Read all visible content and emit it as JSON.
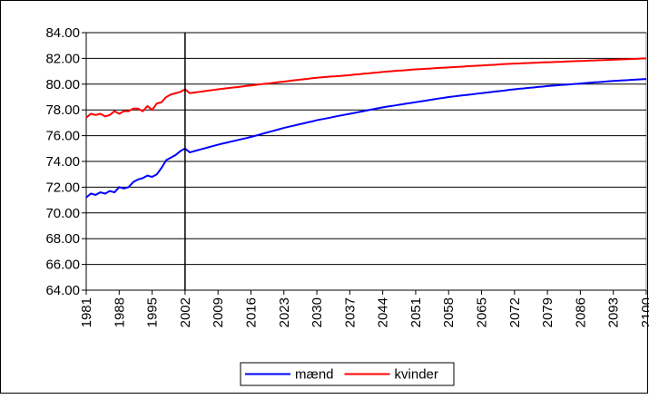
{
  "chart_data": {
    "type": "line",
    "x": [
      1981,
      1982,
      1983,
      1984,
      1985,
      1986,
      1987,
      1988,
      1989,
      1990,
      1991,
      1992,
      1993,
      1994,
      1995,
      1996,
      1997,
      1998,
      1999,
      2000,
      2001,
      2002,
      2003,
      2004,
      2005,
      2006,
      2007,
      2008,
      2009,
      2010,
      2011,
      2012,
      2013,
      2014,
      2015,
      2016,
      2017,
      2018,
      2019,
      2020,
      2021,
      2022,
      2023,
      2024,
      2025,
      2026,
      2027,
      2028,
      2029,
      2030,
      2031,
      2032,
      2033,
      2034,
      2035,
      2036,
      2037,
      2038,
      2039,
      2040,
      2041,
      2042,
      2043,
      2044,
      2045,
      2046,
      2047,
      2048,
      2049,
      2050,
      2051,
      2052,
      2053,
      2054,
      2055,
      2056,
      2057,
      2058,
      2059,
      2060,
      2061,
      2062,
      2063,
      2064,
      2065,
      2066,
      2067,
      2068,
      2069,
      2070,
      2071,
      2072,
      2073,
      2074,
      2075,
      2076,
      2077,
      2078,
      2079,
      2080,
      2081,
      2082,
      2083,
      2084,
      2085,
      2086,
      2087,
      2088,
      2089,
      2090,
      2091,
      2092,
      2093,
      2094,
      2095,
      2096,
      2097,
      2098,
      2099,
      2100
    ],
    "series": [
      {
        "name": "mænd",
        "color": "#0000ff",
        "values": [
          71.2,
          71.5,
          71.4,
          71.6,
          71.5,
          71.7,
          71.6,
          72.0,
          71.9,
          72.0,
          72.4,
          72.6,
          72.7,
          72.9,
          72.8,
          73.0,
          73.5,
          74.1,
          74.3,
          74.5,
          74.8,
          75.0,
          74.7,
          74.8,
          74.9,
          75.0,
          75.1,
          75.2,
          75.3,
          75.39,
          75.47,
          75.56,
          75.64,
          75.73,
          75.81,
          75.9,
          76.0,
          76.1,
          76.2,
          76.3,
          76.4,
          76.5,
          76.6,
          76.69,
          76.77,
          76.86,
          76.94,
          77.03,
          77.11,
          77.2,
          77.27,
          77.34,
          77.41,
          77.49,
          77.56,
          77.63,
          77.7,
          77.77,
          77.84,
          77.91,
          77.99,
          78.06,
          78.13,
          78.2,
          78.26,
          78.31,
          78.37,
          78.43,
          78.49,
          78.54,
          78.6,
          78.66,
          78.71,
          78.77,
          78.83,
          78.89,
          78.94,
          79.0,
          79.04,
          79.09,
          79.13,
          79.17,
          79.21,
          79.26,
          79.3,
          79.34,
          79.39,
          79.43,
          79.47,
          79.51,
          79.56,
          79.6,
          79.64,
          79.67,
          79.71,
          79.74,
          79.78,
          79.81,
          79.85,
          79.88,
          79.91,
          79.94,
          79.96,
          79.99,
          80.02,
          80.05,
          80.08,
          80.11,
          80.14,
          80.16,
          80.19,
          80.22,
          80.25,
          80.27,
          80.29,
          80.31,
          80.34,
          80.36,
          80.38,
          80.4
        ]
      },
      {
        "name": "kvinder",
        "color": "#ff0000",
        "values": [
          77.4,
          77.7,
          77.6,
          77.7,
          77.5,
          77.6,
          77.9,
          77.7,
          77.9,
          77.9,
          78.1,
          78.1,
          77.9,
          78.3,
          78.0,
          78.5,
          78.6,
          79.0,
          79.2,
          79.3,
          79.4,
          79.6,
          79.3,
          79.35,
          79.4,
          79.45,
          79.5,
          79.55,
          79.6,
          79.64,
          79.69,
          79.73,
          79.77,
          79.81,
          79.86,
          79.9,
          79.94,
          79.99,
          80.03,
          80.07,
          80.11,
          80.16,
          80.2,
          80.24,
          80.29,
          80.33,
          80.37,
          80.41,
          80.46,
          80.5,
          80.53,
          80.56,
          80.59,
          80.61,
          80.64,
          80.67,
          80.7,
          80.74,
          80.77,
          80.81,
          80.84,
          80.88,
          80.91,
          80.95,
          80.98,
          81.01,
          81.04,
          81.06,
          81.09,
          81.12,
          81.15,
          81.17,
          81.19,
          81.21,
          81.24,
          81.26,
          81.28,
          81.3,
          81.32,
          81.34,
          81.36,
          81.39,
          81.41,
          81.43,
          81.45,
          81.47,
          81.49,
          81.51,
          81.54,
          81.56,
          81.58,
          81.6,
          81.61,
          81.63,
          81.64,
          81.66,
          81.67,
          81.69,
          81.7,
          81.71,
          81.73,
          81.74,
          81.76,
          81.77,
          81.79,
          81.8,
          81.81,
          81.83,
          81.84,
          81.86,
          81.87,
          81.89,
          81.9,
          81.91,
          81.93,
          81.94,
          81.96,
          81.97,
          81.99,
          82.0
        ]
      }
    ],
    "xlim": [
      1981,
      2100
    ],
    "xticks": [
      1981,
      1988,
      1995,
      2002,
      2009,
      2016,
      2023,
      2030,
      2037,
      2044,
      2051,
      2058,
      2065,
      2072,
      2079,
      2086,
      2093,
      2100
    ],
    "ylim": [
      64,
      84
    ],
    "yticks": [
      {
        "value": 64,
        "label": "64.00"
      },
      {
        "value": 66,
        "label": "66.00"
      },
      {
        "value": 68,
        "label": "68.00"
      },
      {
        "value": 70,
        "label": "70.00"
      },
      {
        "value": 72,
        "label": "72.00"
      },
      {
        "value": 74,
        "label": "74.00"
      },
      {
        "value": 76,
        "label": "76.00"
      },
      {
        "value": 78,
        "label": "78.00"
      },
      {
        "value": 80,
        "label": "80.00"
      },
      {
        "value": 82,
        "label": "82.00"
      },
      {
        "value": 84,
        "label": "84.00"
      }
    ],
    "vline_x": 2002,
    "grid": true,
    "legend": "bottom"
  }
}
